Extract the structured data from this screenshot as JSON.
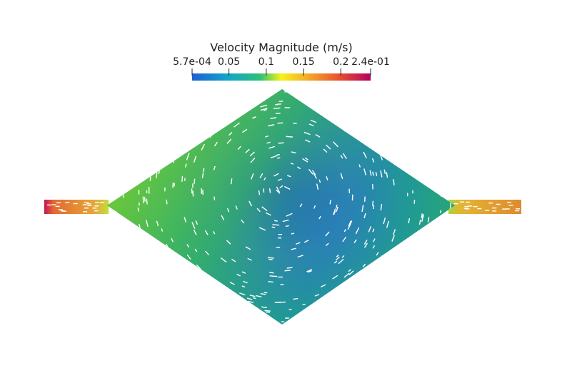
{
  "colorbar": {
    "title": "Velocity Magnitude (m/s)",
    "range": [
      0.00057,
      0.24
    ],
    "ticks": [
      {
        "value": 0.00057,
        "label": "5.7e-04"
      },
      0.05,
      0.1,
      0.15,
      0.2,
      {
        "value": 0.24,
        "label": "2.4e-01"
      }
    ]
  }
}
